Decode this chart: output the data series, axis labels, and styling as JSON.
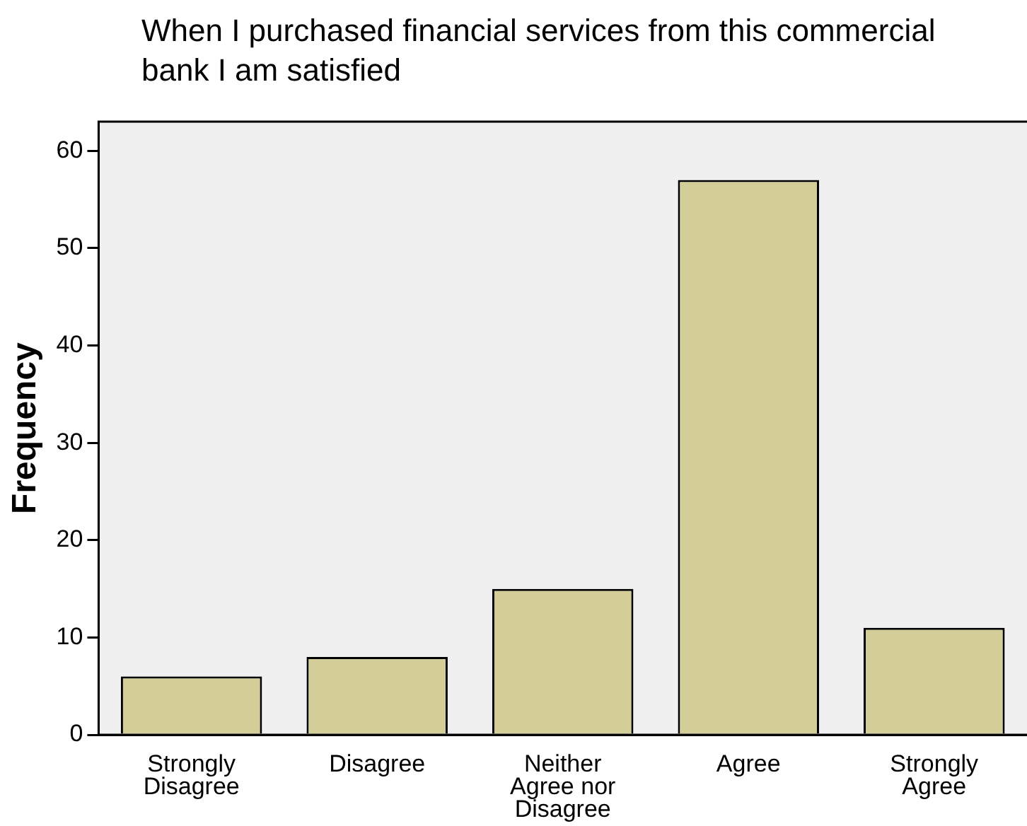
{
  "chart_data": {
    "type": "bar",
    "title": "When I purchased financial services from this commercial bank I am satisfied",
    "ylabel": "Frequency",
    "categories": [
      "Strongly Disagree",
      "Disagree",
      "Neither Agree nor Disagree",
      "Agree",
      "Strongly Agree"
    ],
    "values": [
      6,
      8,
      15,
      57,
      11
    ],
    "color": "#d3ce98",
    "ylim": [
      0,
      63
    ],
    "yticks": [
      0,
      10,
      20,
      30,
      40,
      50,
      60
    ],
    "grid": false,
    "legend": false
  }
}
